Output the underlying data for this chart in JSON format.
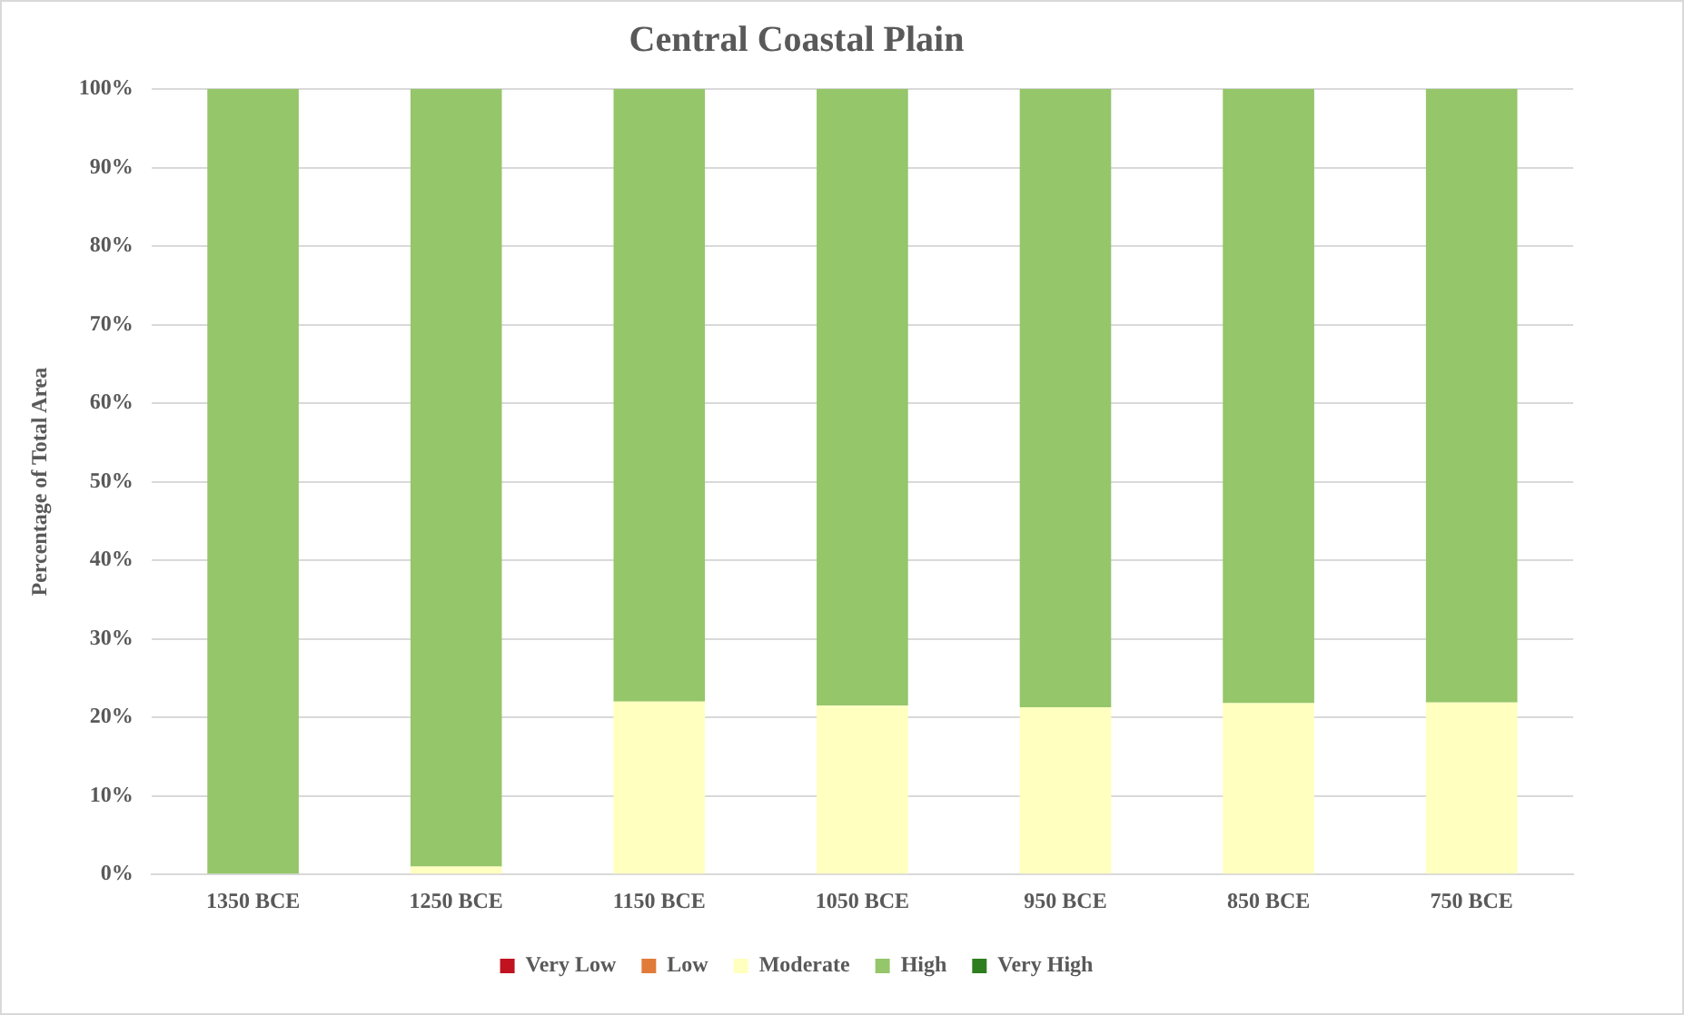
{
  "chart_data": {
    "type": "bar",
    "title": "Central Coastal Plain",
    "ylabel": "Percentage of Total Area",
    "stacked": true,
    "categories": [
      "1350 BCE",
      "1250 BCE",
      "1150 BCE",
      "1050 BCE",
      "950 BCE",
      "850 BCE",
      "750 BCE"
    ],
    "series": [
      {
        "name": "Very Low",
        "color": "#c0121f",
        "values": [
          0,
          0,
          0,
          0,
          0,
          0,
          0
        ]
      },
      {
        "name": "Low",
        "color": "#e07b39",
        "values": [
          0,
          0,
          0,
          0,
          0,
          0,
          0
        ]
      },
      {
        "name": "Moderate",
        "color": "#ffffc0",
        "values": [
          0,
          1,
          22,
          21.5,
          21.3,
          21.8,
          21.9
        ]
      },
      {
        "name": "High",
        "color": "#95c66a",
        "values": [
          100,
          99,
          78,
          78.5,
          78.7,
          78.2,
          78.1
        ]
      },
      {
        "name": "Very High",
        "color": "#2e7d1f",
        "values": [
          0,
          0,
          0,
          0,
          0,
          0,
          0
        ]
      }
    ],
    "ylim": [
      0,
      100
    ],
    "yticks": [
      {
        "value": 0,
        "label": "0%"
      },
      {
        "value": 10,
        "label": "10%"
      },
      {
        "value": 20,
        "label": "20%"
      },
      {
        "value": 30,
        "label": "30%"
      },
      {
        "value": 40,
        "label": "40%"
      },
      {
        "value": 50,
        "label": "50%"
      },
      {
        "value": 60,
        "label": "60%"
      },
      {
        "value": 70,
        "label": "70%"
      },
      {
        "value": 80,
        "label": "80%"
      },
      {
        "value": 90,
        "label": "90%"
      },
      {
        "value": 100,
        "label": "100%"
      }
    ],
    "grid": "y",
    "legend": "bottom"
  }
}
